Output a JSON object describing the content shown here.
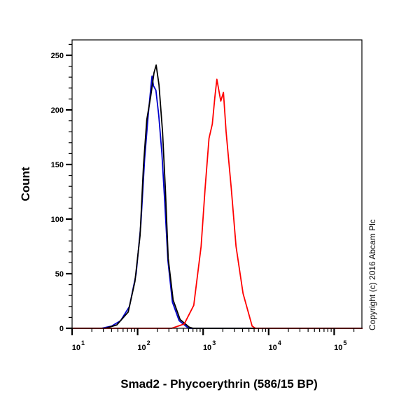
{
  "chart_data": {
    "type": "line",
    "xlabel": "Smad2 - Phycoerythrin (586/15 BP)",
    "ylabel": "Count",
    "x_scale": "log",
    "xlim": [
      10,
      270000
    ],
    "ylim": [
      0,
      265
    ],
    "x_ticks": [
      {
        "value": 10,
        "base": "10",
        "exp": "1"
      },
      {
        "value": 100,
        "base": "10",
        "exp": "2"
      },
      {
        "value": 1000,
        "base": "10",
        "exp": "3"
      },
      {
        "value": 10000,
        "base": "10",
        "exp": "4"
      },
      {
        "value": 100000,
        "base": "10",
        "exp": "5"
      }
    ],
    "y_ticks": [
      "0",
      "50",
      "100",
      "150",
      "200",
      "250"
    ],
    "grid": false,
    "annotation": "Copyright (c) 2016 Abcam Plc",
    "series": [
      {
        "color": "#0000cc",
        "x": [
          10,
          28,
          40,
          55,
          75,
          95,
          112,
          128,
          145,
          160,
          166,
          175,
          190,
          210,
          235,
          260,
          290,
          340,
          430,
          600,
          270000
        ],
        "y": [
          0,
          0,
          2,
          7,
          20,
          50,
          95,
          155,
          195,
          222,
          231,
          222,
          218,
          195,
          160,
          115,
          62,
          24,
          7,
          0,
          0
        ]
      },
      {
        "color": "#000000",
        "x": [
          10,
          32,
          48,
          72,
          91,
          109,
          123,
          138,
          158,
          178,
          192,
          212,
          240,
          265,
          293,
          348,
          445,
          615,
          700,
          270000
        ],
        "y": [
          0,
          0,
          3,
          15,
          43,
          85,
          149,
          191,
          212,
          234,
          241,
          223,
          180,
          128,
          64,
          26,
          8,
          1,
          0,
          0
        ]
      },
      {
        "color": "#ff0000",
        "x": [
          10,
          330,
          372,
          515,
          720,
          930,
          1070,
          1230,
          1380,
          1510,
          1620,
          1860,
          2040,
          2240,
          2690,
          3180,
          4060,
          5600,
          6300,
          270000
        ],
        "y": [
          0,
          0,
          1,
          4,
          21,
          75,
          128,
          174,
          187,
          212,
          228,
          208,
          216,
          180,
          128,
          75,
          32,
          2,
          0,
          0
        ]
      }
    ]
  }
}
